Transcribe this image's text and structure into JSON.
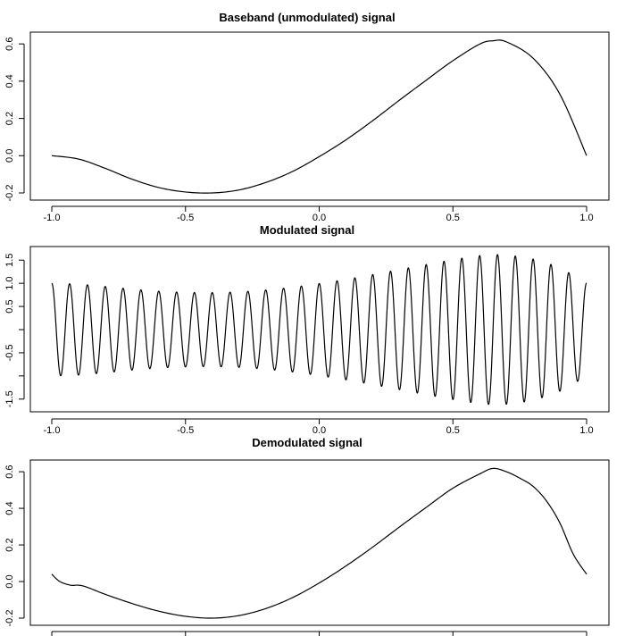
{
  "chart_data": [
    {
      "type": "line",
      "title": "Baseband (unmodulated) signal",
      "xlim": [
        -1,
        1
      ],
      "ylim": [
        -0.2,
        0.62
      ],
      "xticks": [
        -1.0,
        -0.5,
        0.0,
        0.5,
        1.0
      ],
      "xtick_labels": [
        "-1.0",
        "-0.5",
        "0.0",
        "0.5",
        "1.0"
      ],
      "yticks": [
        -0.2,
        0.0,
        0.2,
        0.4,
        0.6
      ],
      "ytick_labels": [
        "-0.2",
        "0.0",
        "0.2",
        "0.4",
        "0.6"
      ],
      "series": [
        {
          "x": [
            -1.0,
            -0.9,
            -0.8,
            -0.7,
            -0.6,
            -0.5,
            -0.4,
            -0.3,
            -0.2,
            -0.1,
            0.0,
            0.1,
            0.2,
            0.3,
            0.4,
            0.5,
            0.6,
            0.65,
            0.7,
            0.8,
            0.9,
            1.0
          ],
          "y": [
            0.0,
            -0.018,
            -0.068,
            -0.126,
            -0.171,
            -0.195,
            -0.2,
            -0.184,
            -0.144,
            -0.085,
            -0.005,
            0.085,
            0.188,
            0.298,
            0.405,
            0.51,
            0.599,
            0.617,
            0.611,
            0.523,
            0.33,
            0.0
          ]
        }
      ]
    },
    {
      "type": "line",
      "title": "Modulated signal",
      "xlim": [
        -1,
        1
      ],
      "ylim": [
        -1.62,
        1.62
      ],
      "xticks": [
        -1.0,
        -0.5,
        0.0,
        0.5,
        1.0
      ],
      "xtick_labels": [
        "-1.0",
        "-0.5",
        "0.0",
        "0.5",
        "1.0"
      ],
      "yticks": [
        -1.5,
        -1.0,
        -0.5,
        0.0,
        0.5,
        1.0,
        1.5
      ],
      "ytick_labels": [
        "-1.5",
        "",
        "-0.5",
        "",
        "0.5",
        "1.0",
        "1.5"
      ],
      "cycles": 30,
      "envelope": {
        "x": [
          -1.0,
          -0.9,
          -0.8,
          -0.7,
          -0.6,
          -0.5,
          -0.4,
          -0.3,
          -0.2,
          -0.1,
          0.0,
          0.1,
          0.2,
          0.3,
          0.4,
          0.5,
          0.6,
          0.65,
          0.7,
          0.8,
          0.9,
          1.0
        ],
        "y": [
          1.0,
          0.982,
          0.932,
          0.874,
          0.829,
          0.805,
          0.8,
          0.816,
          0.856,
          0.915,
          0.995,
          1.085,
          1.188,
          1.298,
          1.405,
          1.51,
          1.599,
          1.617,
          1.611,
          1.523,
          1.33,
          1.0
        ]
      }
    },
    {
      "type": "line",
      "title": "Demodulated signal",
      "xlim": [
        -1,
        1
      ],
      "ylim": [
        -0.2,
        0.62
      ],
      "xticks": [
        -1.0,
        -0.5,
        0.0,
        0.5,
        1.0
      ],
      "xtick_labels": [
        "",
        "",
        "",
        "",
        ""
      ],
      "yticks": [
        -0.2,
        0.0,
        0.2,
        0.4,
        0.6
      ],
      "ytick_labels": [
        "-0.2",
        "0.0",
        "0.2",
        "0.4",
        "0.6"
      ],
      "series": [
        {
          "x": [
            -1.0,
            -0.97,
            -0.93,
            -0.9,
            -0.87,
            -0.8,
            -0.7,
            -0.6,
            -0.5,
            -0.4,
            -0.3,
            -0.2,
            -0.1,
            0.0,
            0.1,
            0.2,
            0.3,
            0.4,
            0.5,
            0.6,
            0.65,
            0.7,
            0.75,
            0.8,
            0.85,
            0.9,
            0.95,
            1.0
          ],
          "y": [
            0.04,
            0.0,
            -0.02,
            -0.02,
            -0.03,
            -0.07,
            -0.12,
            -0.162,
            -0.19,
            -0.2,
            -0.186,
            -0.148,
            -0.088,
            -0.008,
            0.085,
            0.188,
            0.298,
            0.405,
            0.51,
            0.588,
            0.618,
            0.6,
            0.565,
            0.52,
            0.44,
            0.32,
            0.15,
            0.04
          ]
        }
      ]
    }
  ]
}
